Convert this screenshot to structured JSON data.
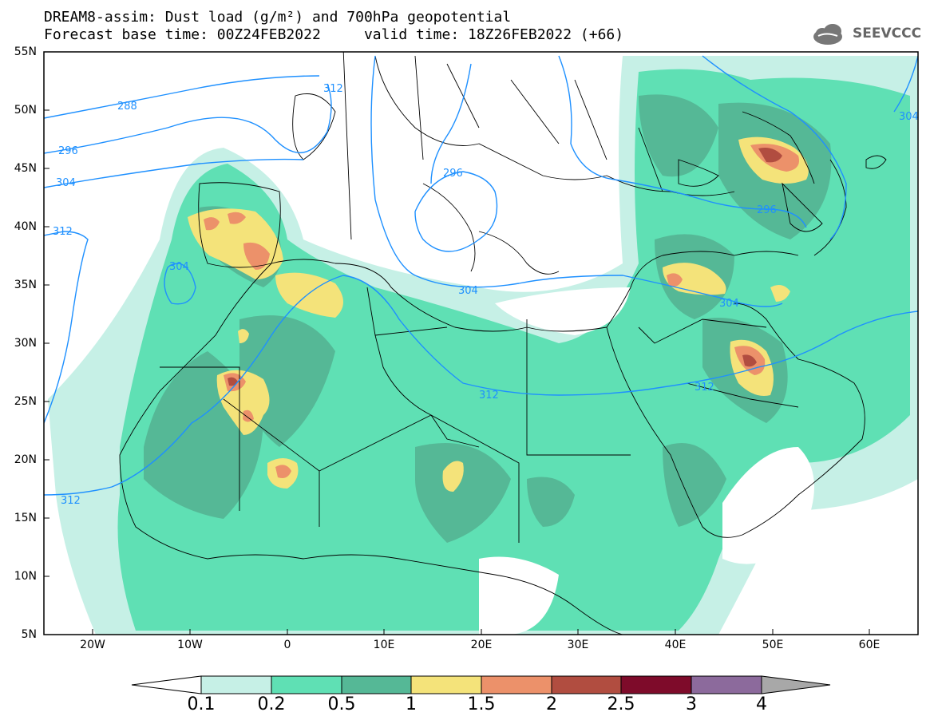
{
  "header": {
    "title_line1": "DREAM8-assim: Dust load (g/m²) and 700hPa geopotential",
    "title_line2": "Forecast base time: 00Z24FEB2022     valid time: 18Z26FEB2022 (+66)"
  },
  "logo": {
    "text": "SEEVCCC",
    "icon": "cloud-logo-icon"
  },
  "map": {
    "lat_labels": [
      "55N",
      "50N",
      "45N",
      "40N",
      "35N",
      "30N",
      "25N",
      "20N",
      "15N",
      "10N",
      "5N"
    ],
    "lon_labels": [
      "20W",
      "10W",
      "0",
      "10E",
      "20E",
      "30E",
      "40E",
      "50E",
      "60E"
    ],
    "contour_labels": [
      "288",
      "296",
      "304",
      "312",
      "312",
      "304",
      "296",
      "304",
      "312",
      "312",
      "296",
      "304",
      "312",
      "304"
    ]
  },
  "colorbar": {
    "labels": [
      "0.1",
      "0.2",
      "0.5",
      "1",
      "1.5",
      "2",
      "2.5",
      "3",
      "4"
    ],
    "colors": [
      "#ffffff",
      "#c6f0e6",
      "#5fe0b4",
      "#55b896",
      "#f4e37a",
      "#ec916a",
      "#b14d40",
      "#7e0b2a",
      "#8c6a9c",
      "#a8a8a8"
    ]
  }
}
